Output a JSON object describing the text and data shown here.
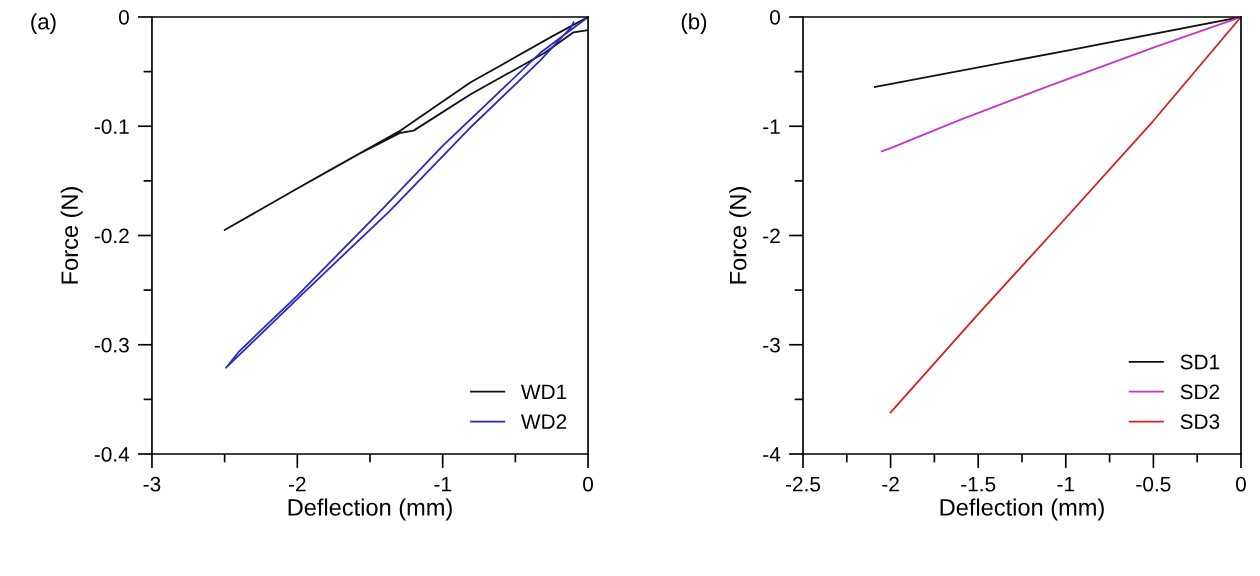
{
  "chart_data": [
    {
      "type": "line",
      "xlabel": "Deflection (mm)",
      "ylabel": "Force (N)",
      "annotations": [
        "(a)"
      ],
      "xlim": [
        -3,
        0
      ],
      "xticks": [
        -3,
        {
          "value": -2.5,
          "label": null
        },
        -2,
        {
          "value": -1.5,
          "label": null
        },
        -1,
        {
          "value": -0.5,
          "label": null
        },
        0
      ],
      "ylim": [
        -0.4,
        0
      ],
      "yticks": [
        -0.4,
        {
          "value": -0.35,
          "label": null
        },
        -0.3,
        {
          "value": -0.25,
          "label": null
        },
        -0.2,
        {
          "value": -0.15,
          "label": null
        },
        -0.1,
        {
          "value": -0.05,
          "label": null
        },
        0
      ],
      "legend": "bottom right",
      "grid": false,
      "marker": "none",
      "line_style": "solid",
      "series": [
        {
          "name": "WD1",
          "color": "#111111",
          "x": [
            0,
            -0.25,
            -0.81,
            -1.29,
            -1.8,
            -2.0,
            -2.5,
            -2.0,
            -1.6,
            -1.29,
            -1.2,
            -0.81,
            -0.3,
            -0.1,
            0
          ],
          "values": [
            0,
            -0.018,
            -0.06,
            -0.104,
            -0.142,
            -0.157,
            -0.195,
            -0.157,
            -0.127,
            -0.106,
            -0.104,
            -0.071,
            -0.033,
            -0.014,
            -0.012
          ]
        },
        {
          "name": "WD2",
          "color": "#2b2bbf",
          "x": [
            0,
            -0.33,
            -1.0,
            -1.43,
            -2.0,
            -2.4,
            -2.49,
            -2.0,
            -1.36,
            -0.8,
            -0.33,
            -0.12,
            -0.1
          ],
          "values": [
            0,
            -0.033,
            -0.118,
            -0.178,
            -0.255,
            -0.306,
            -0.321,
            -0.258,
            -0.177,
            -0.1,
            -0.04,
            -0.01,
            -0.005
          ]
        }
      ]
    },
    {
      "type": "line",
      "xlabel": "Deflection (mm)",
      "ylabel": "Force (N)",
      "annotations": [
        "(b)"
      ],
      "xlim": [
        -2.5,
        0
      ],
      "xticks": [
        -2.5,
        {
          "value": -2.25,
          "label": null
        },
        -2,
        {
          "value": -1.75,
          "label": null
        },
        -1.5,
        {
          "value": -1.25,
          "label": null
        },
        -1,
        {
          "value": -0.75,
          "label": null
        },
        -0.5,
        {
          "value": -0.25,
          "label": null
        },
        0
      ],
      "ylim": [
        -4,
        0
      ],
      "yticks": [
        -4,
        {
          "value": -3.5,
          "label": null
        },
        -3,
        {
          "value": -2.5,
          "label": null
        },
        -2,
        {
          "value": -1.5,
          "label": null
        },
        -1,
        {
          "value": -0.5,
          "label": null
        },
        0
      ],
      "legend": "bottom right",
      "grid": false,
      "marker": "none",
      "line_style": "solid",
      "series": [
        {
          "name": "SD1",
          "color": "#111111",
          "x": [
            0,
            -1.0,
            -2.09
          ],
          "values": [
            0,
            -0.31,
            -0.64
          ]
        },
        {
          "name": "SD2",
          "color": "#cc33cc",
          "x": [
            0,
            -0.5,
            -1.11,
            -1.6,
            -2.0,
            -2.05
          ],
          "values": [
            0,
            -0.28,
            -0.64,
            -0.94,
            -1.2,
            -1.23
          ]
        },
        {
          "name": "SD3",
          "color": "#d62020",
          "x": [
            0,
            -0.5,
            -1.0,
            -1.5,
            -2.0
          ],
          "values": [
            0,
            -0.95,
            -1.84,
            -2.72,
            -3.62
          ]
        }
      ]
    }
  ]
}
